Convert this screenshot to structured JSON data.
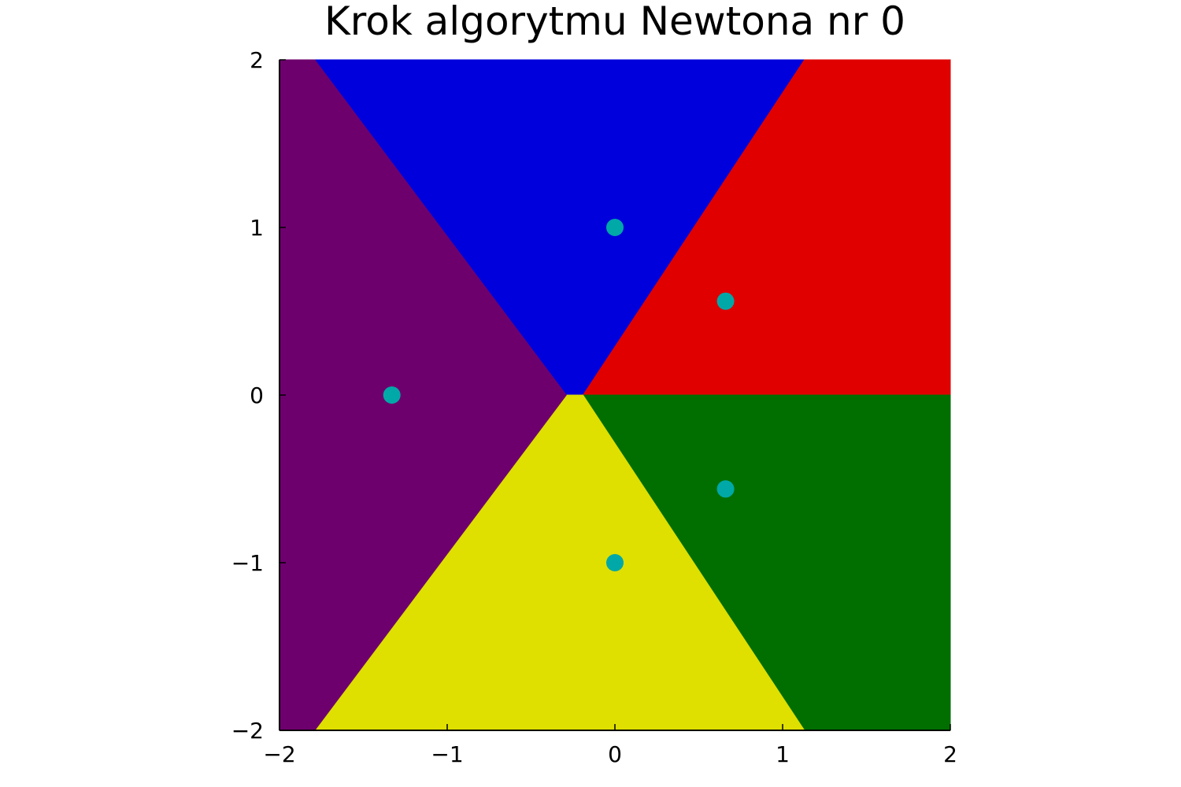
{
  "chart_data": {
    "type": "heatmap",
    "title": "Krok algorytmu Newtona nr 0",
    "xlabel": "",
    "ylabel": "",
    "xlim": [
      -2,
      2
    ],
    "ylim": [
      -2,
      2
    ],
    "grid": false,
    "legend": "none",
    "x_ticks": [
      {
        "value": -2,
        "label": "−2"
      },
      {
        "value": -1,
        "label": "−1"
      },
      {
        "value": 0,
        "label": "0"
      },
      {
        "value": 1,
        "label": "1"
      },
      {
        "value": 2,
        "label": "2"
      }
    ],
    "y_ticks": [
      {
        "value": -2,
        "label": "−2"
      },
      {
        "value": -1,
        "label": "−1"
      },
      {
        "value": 0,
        "label": "0"
      },
      {
        "value": 1,
        "label": "1"
      },
      {
        "value": 2,
        "label": "2"
      }
    ],
    "regions": [
      {
        "color": "#0000dc",
        "polygon": [
          [
            -1.79,
            2
          ],
          [
            1.13,
            2
          ],
          [
            -0.19,
            0
          ],
          [
            -0.29,
            0
          ]
        ]
      },
      {
        "color": "#e00000",
        "polygon": [
          [
            1.13,
            2
          ],
          [
            2,
            2
          ],
          [
            2,
            0
          ],
          [
            -0.19,
            0
          ]
        ]
      },
      {
        "color": "#006f00",
        "polygon": [
          [
            -0.19,
            0
          ],
          [
            2,
            0
          ],
          [
            2,
            -2
          ],
          [
            1.13,
            -2
          ]
        ]
      },
      {
        "color": "#dfdf00",
        "polygon": [
          [
            -0.29,
            0
          ],
          [
            -0.19,
            0
          ],
          [
            1.13,
            -2
          ],
          [
            -1.79,
            -2
          ]
        ]
      },
      {
        "color": "#6e006e",
        "polygon": [
          [
            -2,
            2
          ],
          [
            -1.79,
            2
          ],
          [
            -0.29,
            0
          ],
          [
            -1.79,
            -2
          ],
          [
            -2,
            -2
          ]
        ]
      }
    ],
    "points": {
      "color": "#00a8a8",
      "x": [
        0,
        0.66,
        -1.33,
        0.66,
        0
      ],
      "y": [
        1,
        0.56,
        0,
        -0.56,
        -1
      ]
    }
  }
}
